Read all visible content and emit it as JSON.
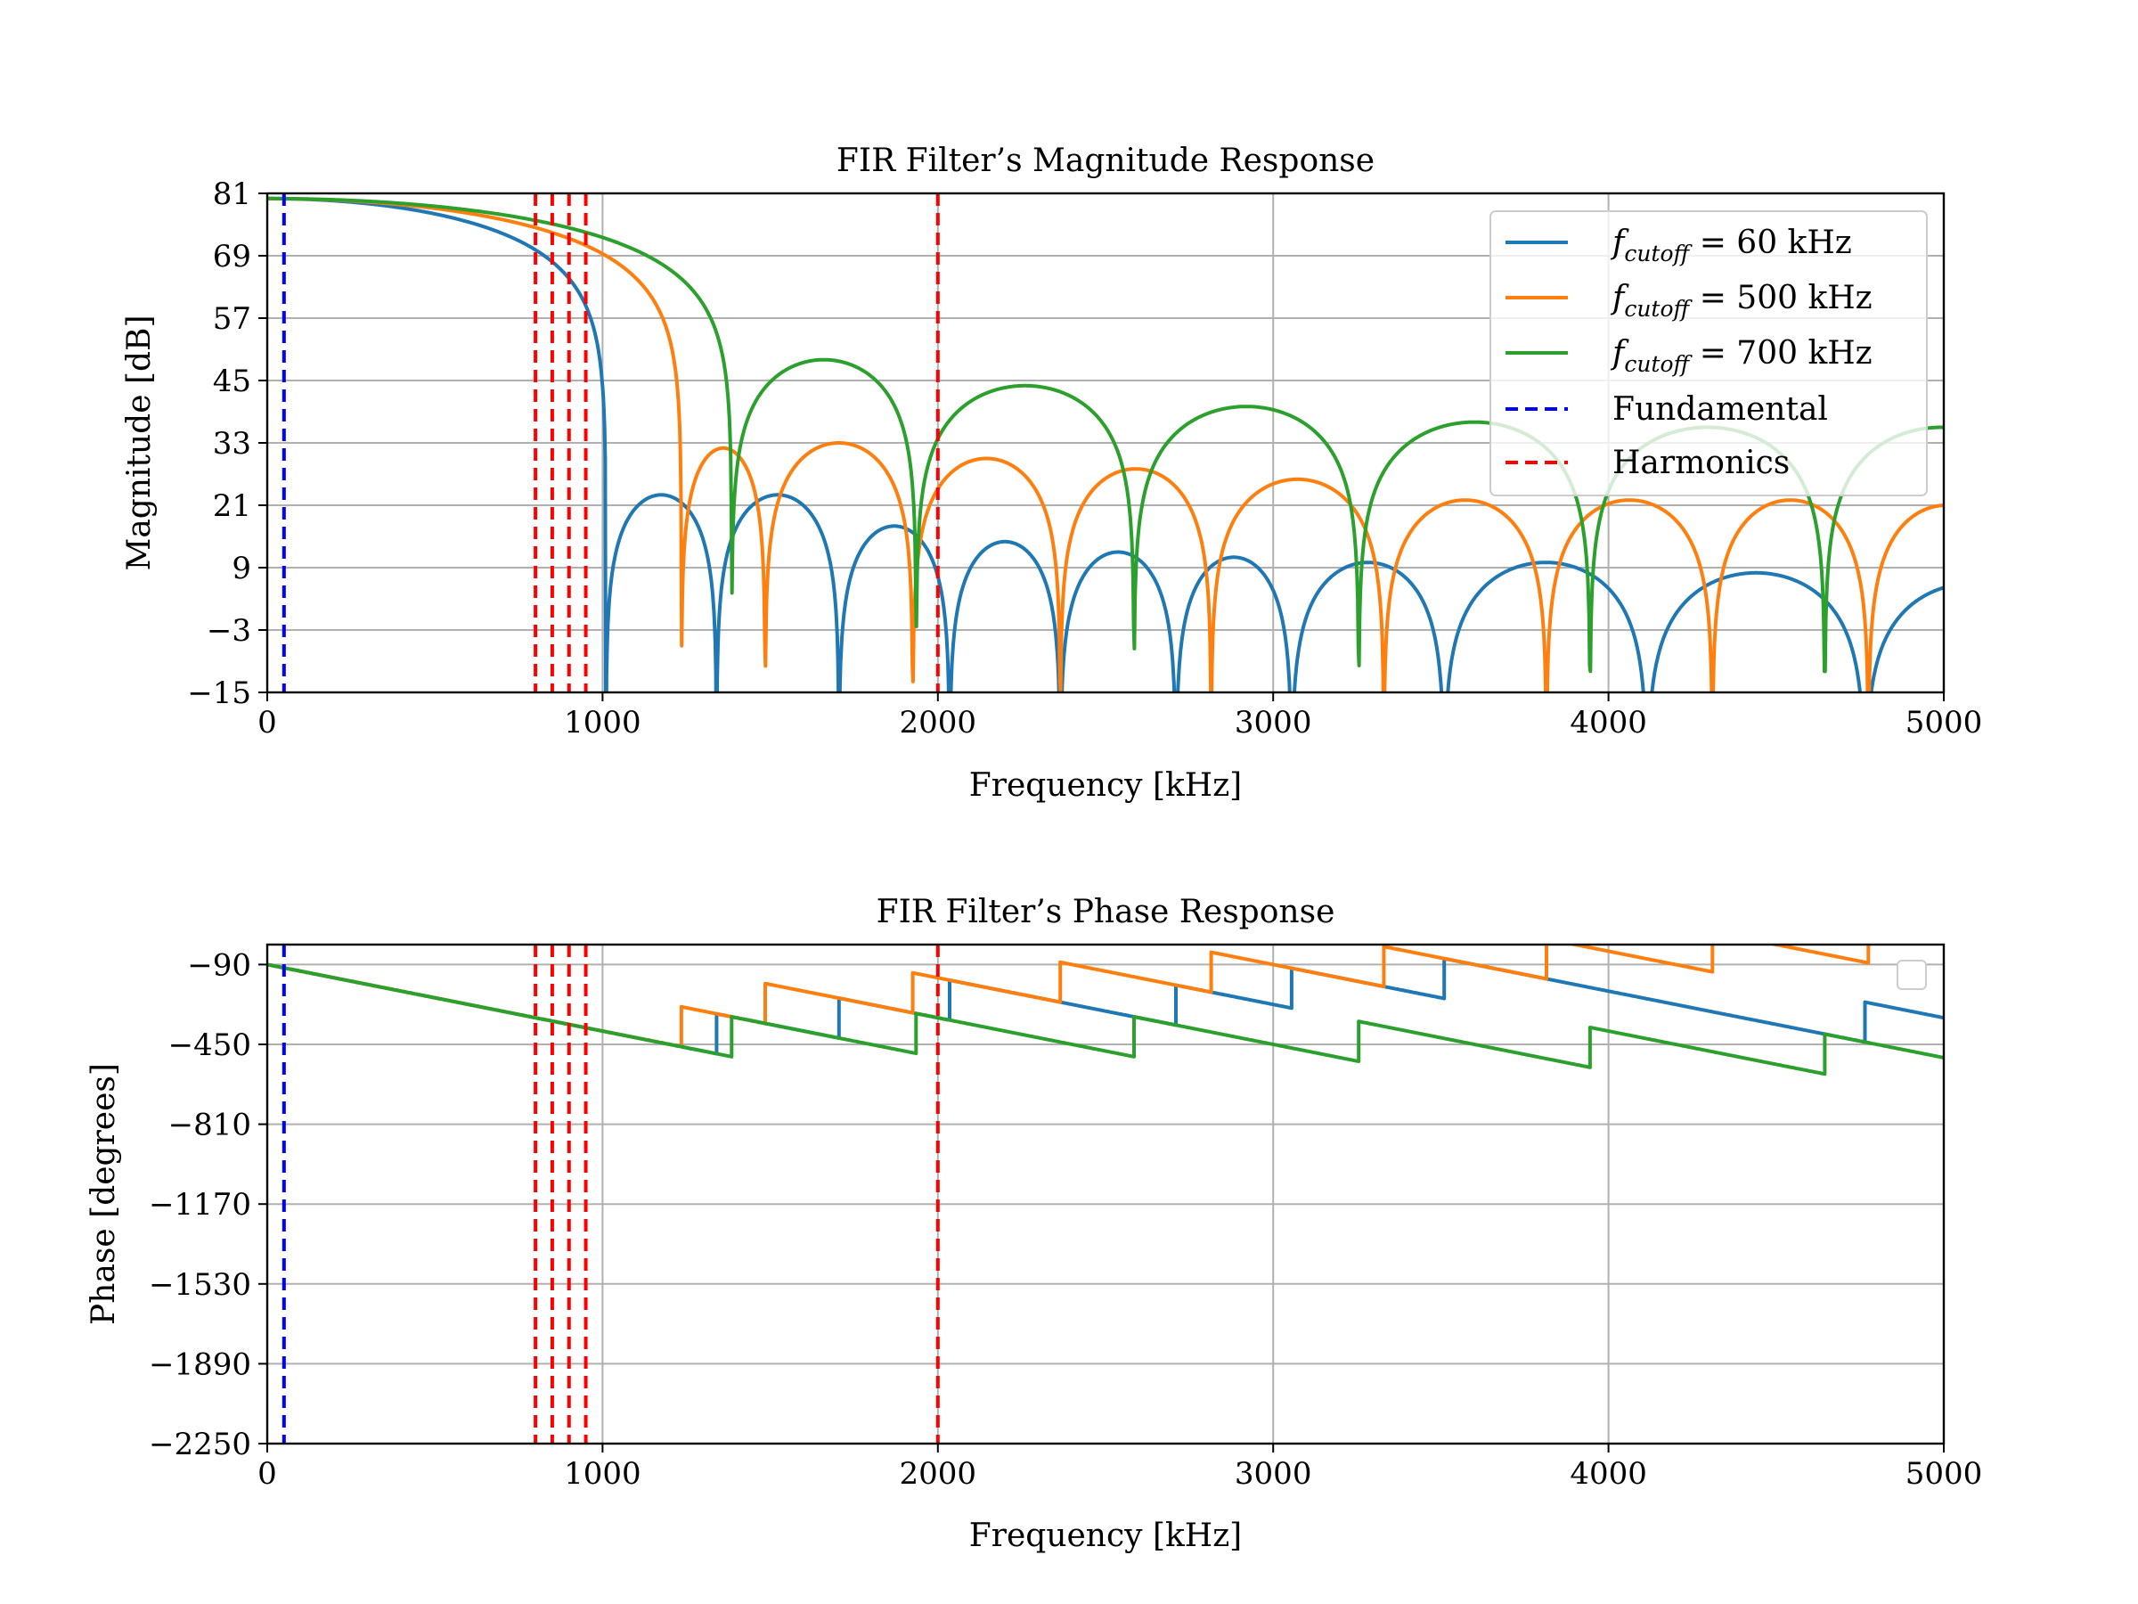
{
  "chart_data": [
    {
      "type": "line",
      "title": "FIR Filter’s Magnitude Response",
      "xlabel": "Frequency [kHz]",
      "ylabel": "Magnitude [dB]",
      "xlim": [
        0,
        5000
      ],
      "ylim": [
        -15,
        81
      ],
      "xticks": [
        0,
        1000,
        2000,
        3000,
        4000,
        5000
      ],
      "yticks": [
        -15,
        -3,
        9,
        21,
        33,
        45,
        57,
        69,
        81
      ],
      "xtick_labels": [
        "0",
        "1000",
        "2000",
        "3000",
        "4000",
        "5000"
      ],
      "ytick_labels": [
        "−15",
        "−3",
        "9",
        "21",
        "33",
        "45",
        "57",
        "69",
        "81"
      ],
      "grid": true,
      "legend_position": "top-right",
      "series": [
        {
          "name": "f_cutoff = 60 kHz",
          "legend_sub": "cutoff",
          "legend_value": " = 60 kHz",
          "color": "#1f77b4",
          "style": "solid",
          "zeros_khz": [
            1010,
            1340,
            1705,
            2035,
            2365,
            2710,
            3055,
            3510,
            4115,
            4765
          ],
          "lobe_peaks_db": [
            23,
            23,
            17,
            14,
            12,
            11,
            10,
            10,
            8,
            6
          ],
          "main_lobe_db": 80
        },
        {
          "name": "f_cutoff = 500 kHz",
          "legend_sub": "cutoff",
          "legend_value": " = 500 kHz",
          "color": "#ff7f0e",
          "style": "solid",
          "zeros_khz": [
            1235,
            1485,
            1925,
            2365,
            2815,
            3330,
            3815,
            4310,
            4775
          ],
          "lobe_peaks_db": [
            32,
            33,
            30,
            28,
            26,
            22,
            22,
            22,
            21
          ],
          "main_lobe_db": 80
        },
        {
          "name": "f_cutoff = 700 kHz",
          "legend_sub": "cutoff",
          "legend_value": " = 700 kHz",
          "color": "#2ca02c",
          "style": "solid",
          "zeros_khz": [
            1385,
            1935,
            2585,
            3255,
            3945,
            4645
          ],
          "lobe_peaks_db": [
            49,
            44,
            40,
            37,
            36
          ],
          "main_lobe_db": 80
        },
        {
          "name": "Fundamental",
          "color": "#0000ff",
          "style": "dashed",
          "x_khz": [
            50
          ]
        },
        {
          "name": "Harmonics",
          "color": "#ff0000",
          "style": "dashed",
          "x_khz": [
            800,
            850,
            900,
            950,
            2000
          ]
        }
      ]
    },
    {
      "type": "line",
      "title": "FIR Filter’s Phase Response",
      "xlabel": "Frequency [kHz]",
      "ylabel": "Phase [degrees]",
      "xlim": [
        0,
        5000
      ],
      "ylim": [
        -2250,
        0
      ],
      "xticks": [
        0,
        1000,
        2000,
        3000,
        4000,
        5000
      ],
      "yticks": [
        -90,
        -450,
        -810,
        -1170,
        -1530,
        -1890,
        -2250
      ],
      "xtick_labels": [
        "0",
        "1000",
        "2000",
        "3000",
        "4000",
        "5000"
      ],
      "ytick_labels": [
        "−90",
        "−450",
        "−810",
        "−1170",
        "−1530",
        "−1890",
        "−2250"
      ],
      "grid": true,
      "legend_position": "top-right",
      "phase_slope_deg_per_khz": -0.3,
      "phase_start_deg": -90,
      "series": [
        {
          "name": "f_cutoff = 60 kHz",
          "color": "#1f77b4",
          "style": "solid",
          "jump_points_khz": [
            1340,
            1705,
            2035,
            2710,
            3055,
            3510,
            4765
          ]
        },
        {
          "name": "f_cutoff = 500 kHz",
          "color": "#ff7f0e",
          "style": "solid",
          "jump_points_khz": [
            1235,
            1485,
            1925,
            2365,
            2815,
            3330,
            3815,
            4310,
            4775
          ]
        },
        {
          "name": "f_cutoff = 700 kHz",
          "color": "#2ca02c",
          "style": "solid",
          "jump_points_khz": [
            1385,
            1935,
            2585,
            3255,
            3945,
            4645
          ]
        },
        {
          "name": "Fundamental",
          "color": "#0000ff",
          "style": "dashed",
          "x_khz": [
            50
          ]
        },
        {
          "name": "Harmonics",
          "color": "#ff0000",
          "style": "dashed",
          "x_khz": [
            800,
            850,
            900,
            950,
            2000
          ]
        }
      ]
    }
  ]
}
